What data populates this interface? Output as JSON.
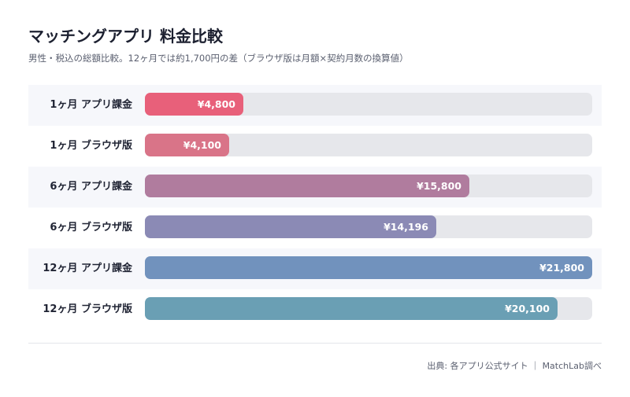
{
  "title": "マッチングアプリ 料金比較",
  "subtitle": "男性・税込の総額比較。12ヶ月では約1,700円の差（ブラウザ版は月額×契約月数の換算値）",
  "source": "出典: 各アプリ公式サイト ｜ MatchLab調べ",
  "chart_data": {
    "type": "bar",
    "orientation": "horizontal",
    "title": "マッチングアプリ 料金比較",
    "subtitle": "男性・税込の総額比較。12ヶ月では約1,700円の差（ブラウザ版は月額×契約月数の換算値）",
    "categories": [
      "1ヶ月 アプリ課金",
      "1ヶ月 ブラウザ版",
      "6ヶ月 アプリ課金",
      "6ヶ月 ブラウザ版",
      "12ヶ月 アプリ課金",
      "12ヶ月 ブラウザ版"
    ],
    "values": [
      4800,
      4100,
      15800,
      14196,
      21800,
      20100
    ],
    "value_labels": [
      "¥4,800",
      "¥4,100",
      "¥15,800",
      "¥14,196",
      "¥21,800",
      "¥20,100"
    ],
    "colors": [
      "#e8607a",
      "#d97488",
      "#b07c9e",
      "#8b8ab5",
      "#7192bd",
      "#6a9fb4"
    ],
    "xlim": [
      0,
      21800
    ],
    "grid": false,
    "legend": "none"
  }
}
